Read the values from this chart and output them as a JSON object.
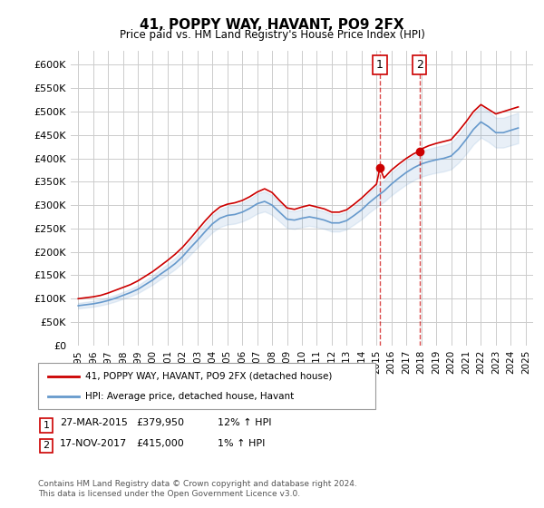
{
  "title": "41, POPPY WAY, HAVANT, PO9 2FX",
  "subtitle": "Price paid vs. HM Land Registry's House Price Index (HPI)",
  "ylabel_ticks": [
    "£0",
    "£50K",
    "£100K",
    "£150K",
    "£200K",
    "£250K",
    "£300K",
    "£350K",
    "£400K",
    "£450K",
    "£500K",
    "£550K",
    "£600K"
  ],
  "ytick_values": [
    0,
    50000,
    100000,
    150000,
    200000,
    250000,
    300000,
    350000,
    400000,
    450000,
    500000,
    550000,
    600000
  ],
  "ylim": [
    0,
    630000
  ],
  "xlim": [
    1994.5,
    2025.5
  ],
  "transaction1": {
    "date": "27-MAR-2015",
    "price": 379950,
    "label": "1",
    "year": 2015.23,
    "hpi_pct": "12% ↑ HPI"
  },
  "transaction2": {
    "date": "17-NOV-2017",
    "price": 415000,
    "label": "2",
    "year": 2017.88,
    "hpi_pct": "1% ↑ HPI"
  },
  "legend_line1": "41, POPPY WAY, HAVANT, PO9 2FX (detached house)",
  "legend_line2": "HPI: Average price, detached house, Havant",
  "footnote": "Contains HM Land Registry data © Crown copyright and database right 2024.\nThis data is licensed under the Open Government Licence v3.0.",
  "line_color_red": "#cc0000",
  "line_color_blue": "#6699cc",
  "hpi_x": [
    1995,
    1995.5,
    1996,
    1996.5,
    1997,
    1997.5,
    1998,
    1998.5,
    1999,
    1999.5,
    2000,
    2000.5,
    2001,
    2001.5,
    2002,
    2002.5,
    2003,
    2003.5,
    2004,
    2004.5,
    2005,
    2005.5,
    2006,
    2006.5,
    2007,
    2007.5,
    2008,
    2008.5,
    2009,
    2009.5,
    2010,
    2010.5,
    2011,
    2011.5,
    2012,
    2012.5,
    2013,
    2013.5,
    2014,
    2014.5,
    2015,
    2015.5,
    2016,
    2016.5,
    2017,
    2017.5,
    2018,
    2018.5,
    2019,
    2019.5,
    2020,
    2020.5,
    2021,
    2021.5,
    2022,
    2022.5,
    2023,
    2023.5,
    2024,
    2024.5
  ],
  "hpi_y": [
    85000,
    87000,
    89000,
    92000,
    96000,
    101000,
    107000,
    113000,
    120000,
    130000,
    140000,
    152000,
    163000,
    175000,
    190000,
    208000,
    225000,
    243000,
    260000,
    272000,
    278000,
    280000,
    285000,
    293000,
    303000,
    308000,
    300000,
    285000,
    270000,
    268000,
    272000,
    275000,
    272000,
    268000,
    262000,
    262000,
    267000,
    278000,
    290000,
    305000,
    318000,
    330000,
    345000,
    358000,
    370000,
    380000,
    388000,
    393000,
    397000,
    400000,
    405000,
    420000,
    440000,
    462000,
    478000,
    468000,
    455000,
    455000,
    460000,
    465000
  ],
  "red_x": [
    1995,
    1995.5,
    1996,
    1996.5,
    1997,
    1997.5,
    1998,
    1998.5,
    1999,
    1999.5,
    2000,
    2000.5,
    2001,
    2001.5,
    2002,
    2002.5,
    2003,
    2003.5,
    2004,
    2004.5,
    2005,
    2005.5,
    2006,
    2006.5,
    2007,
    2007.5,
    2008,
    2008.5,
    2009,
    2009.5,
    2010,
    2010.5,
    2011,
    2011.5,
    2012,
    2012.5,
    2013,
    2013.5,
    2014,
    2014.5,
    2015,
    2015.23,
    2015.5,
    2016,
    2016.5,
    2017,
    2017.5,
    2017.88,
    2018,
    2018.5,
    2019,
    2019.5,
    2020,
    2020.5,
    2021,
    2021.5,
    2022,
    2022.5,
    2023,
    2023.5,
    2024,
    2024.5
  ],
  "red_y": [
    100000,
    102000,
    104000,
    107000,
    112000,
    118000,
    124000,
    130000,
    138000,
    148000,
    158000,
    170000,
    182000,
    195000,
    210000,
    228000,
    247000,
    266000,
    283000,
    296000,
    302000,
    305000,
    310000,
    318000,
    328000,
    335000,
    327000,
    310000,
    294000,
    291000,
    296000,
    300000,
    296000,
    292000,
    285000,
    285000,
    290000,
    302000,
    315000,
    330000,
    345000,
    379950,
    358000,
    375000,
    388000,
    400000,
    410000,
    415000,
    420000,
    427000,
    432000,
    436000,
    440000,
    458000,
    478000,
    500000,
    515000,
    505000,
    495000,
    500000,
    505000,
    510000
  ]
}
